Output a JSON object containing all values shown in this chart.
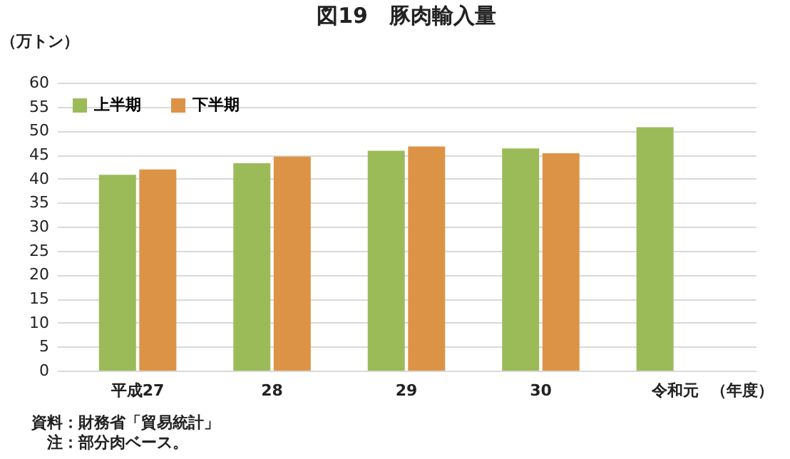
{
  "chart_data": {
    "type": "bar",
    "title": "図19　豚肉輸入量",
    "ylabel": "（万トン）",
    "xlabel": "（年度）",
    "categories": [
      "平成27",
      "28",
      "29",
      "30",
      "令和元"
    ],
    "series": [
      {
        "name": "上半期",
        "color": "#9bbb59",
        "values": [
          40.8,
          43.2,
          45.8,
          46.3,
          50.7
        ]
      },
      {
        "name": "下半期",
        "color": "#dd9346",
        "values": [
          41.9,
          44.6,
          46.7,
          45.3,
          null
        ]
      }
    ],
    "ylim": [
      0,
      60
    ],
    "yticks": [
      0,
      5,
      10,
      15,
      20,
      25,
      30,
      35,
      40,
      45,
      50,
      55,
      60
    ],
    "grid": "y",
    "legend": "top left",
    "annotations": [
      "資料：財務省「貿易統計」",
      "　注：部分肉ベース。"
    ]
  }
}
